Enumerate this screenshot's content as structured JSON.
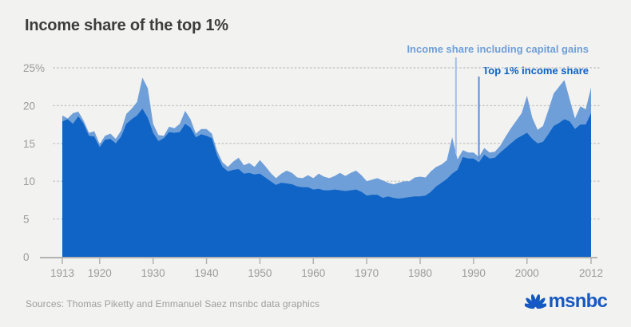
{
  "title": "Income share of the top 1%",
  "legend": {
    "items": [
      {
        "label": "Income share including capital gains",
        "color": "#6f9fd9"
      },
      {
        "label": "Top 1% income share",
        "color": "#0b61c5"
      }
    ]
  },
  "footer": {
    "sources": "Sources: Thomas Piketty and Emmanuel Saez msnbc data graphics"
  },
  "branding": {
    "logo_text": "msnbc",
    "logo_color": "#1559c1"
  },
  "chart_data": {
    "type": "area",
    "title": "Income share of the top 1%",
    "unit": "percent of total income",
    "x_range": [
      1913,
      2012
    ],
    "ylim": [
      0,
      25
    ],
    "grid": "dotted horizontal gridlines",
    "legend_position": "top-right",
    "x_ticks": [
      1913,
      1920,
      1930,
      1940,
      1950,
      1960,
      1970,
      1980,
      1990,
      2000,
      2012
    ],
    "y_ticks": [
      {
        "value": 25,
        "label": "25%"
      },
      {
        "value": 20,
        "label": "20"
      },
      {
        "value": 15,
        "label": "15"
      },
      {
        "value": 10,
        "label": "10"
      },
      {
        "value": 5,
        "label": "5"
      },
      {
        "value": 0,
        "label": "0"
      }
    ],
    "series": [
      {
        "name": "Income share including capital gains",
        "color": "#6f9fd9",
        "values": [
          18.7,
          18.3,
          19.0,
          19.2,
          18.0,
          16.4,
          16.6,
          14.9,
          16.0,
          16.3,
          15.6,
          16.7,
          18.9,
          19.6,
          20.5,
          23.7,
          22.3,
          17.6,
          16.1,
          16.0,
          17.2,
          17.0,
          17.6,
          19.3,
          18.2,
          16.3,
          16.9,
          16.9,
          16.3,
          14.0,
          12.5,
          11.9,
          12.6,
          13.1,
          12.1,
          12.4,
          11.9,
          12.8,
          12.0,
          11.1,
          10.4,
          11.0,
          11.4,
          11.1,
          10.5,
          10.4,
          10.8,
          10.4,
          11.0,
          10.6,
          10.4,
          10.7,
          11.1,
          10.7,
          11.1,
          11.4,
          10.8,
          10.0,
          10.2,
          10.4,
          10.1,
          9.8,
          9.6,
          9.8,
          10.0,
          10.0,
          10.5,
          10.6,
          10.5,
          11.3,
          11.9,
          12.2,
          12.8,
          15.8,
          12.9,
          14.1,
          13.8,
          13.8,
          13.2,
          14.4,
          13.8,
          13.9,
          14.7,
          15.9,
          17.0,
          18.0,
          19.0,
          21.3,
          18.4,
          16.8,
          17.3,
          19.4,
          21.6,
          22.5,
          23.4,
          20.8,
          18.3,
          19.9,
          19.5,
          22.4
        ]
      },
      {
        "name": "Top 1% income share",
        "color": "#0f64c5",
        "values": [
          17.9,
          18.2,
          17.6,
          18.6,
          17.6,
          16.0,
          15.9,
          14.5,
          15.5,
          15.6,
          15.0,
          15.9,
          17.6,
          18.2,
          18.7,
          19.6,
          18.4,
          16.4,
          15.3,
          15.7,
          16.5,
          16.4,
          16.5,
          17.6,
          17.1,
          15.8,
          16.2,
          16.0,
          15.7,
          13.4,
          11.9,
          11.3,
          11.5,
          11.6,
          11.0,
          11.1,
          10.9,
          11.0,
          10.5,
          10.0,
          9.5,
          9.8,
          9.7,
          9.6,
          9.3,
          9.2,
          9.2,
          8.9,
          9.0,
          8.8,
          8.8,
          8.9,
          8.8,
          8.7,
          8.8,
          8.9,
          8.6,
          8.1,
          8.2,
          8.2,
          7.8,
          8.0,
          7.8,
          7.7,
          7.8,
          7.9,
          8.0,
          8.0,
          8.1,
          8.6,
          9.3,
          9.8,
          10.3,
          11.0,
          11.5,
          13.2,
          13.0,
          13.0,
          12.5,
          13.5,
          13.0,
          13.1,
          13.8,
          14.4,
          15.0,
          15.6,
          16.0,
          16.4,
          15.6,
          15.0,
          15.2,
          16.2,
          17.3,
          17.7,
          18.2,
          17.9,
          16.9,
          17.5,
          17.5,
          19.0
        ]
      }
    ],
    "annotations": [
      {
        "name": "leader-line-including-capital-gains",
        "year": 1986.7,
        "y_from": 72,
        "y_to": 193,
        "color": "#a3c0ea"
      },
      {
        "name": "leader-line-top1-income-share",
        "year": 1991,
        "y_from": 96,
        "y_to": 200,
        "color": "#5a8fd8"
      }
    ],
    "colors": {
      "grid": "#c5c5c3",
      "axis": "#b3b3b1",
      "tick_label": "#9b9b99",
      "background": "#f2f2f0"
    }
  }
}
